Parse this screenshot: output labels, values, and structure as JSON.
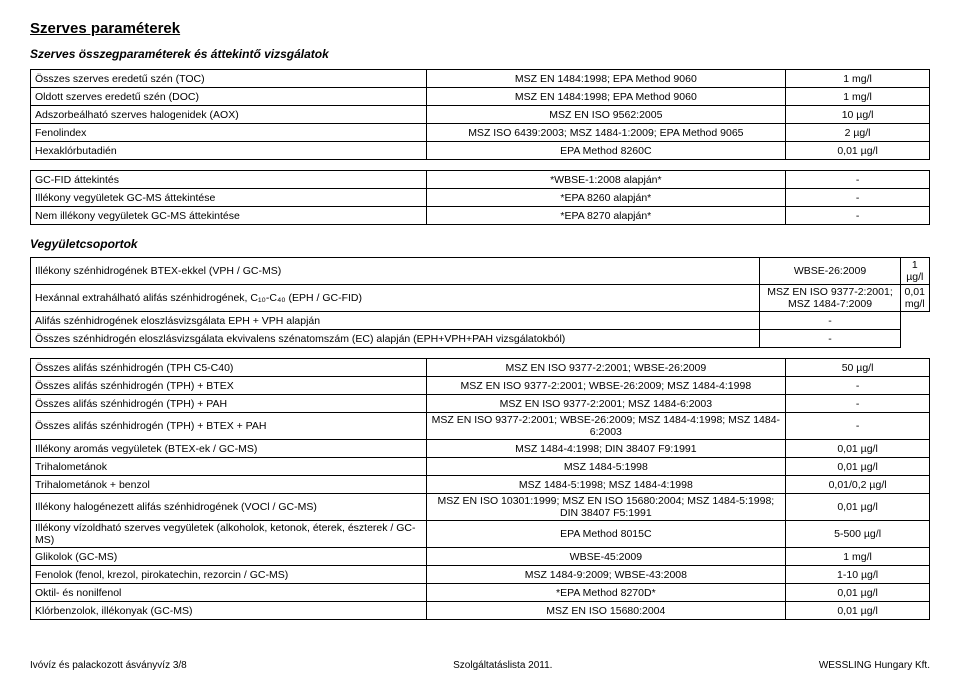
{
  "titles": {
    "main": "Szerves paraméterek",
    "sub": "Szerves összegparaméterek és áttekintő vizsgálatok",
    "section2": "Vegyületcsoportok"
  },
  "table1": [
    {
      "p": "Összes szerves eredetű szén (TOC)",
      "m": "MSZ EN 1484:1998; EPA Method 9060",
      "l": "1 mg/l"
    },
    {
      "p": "Oldott szerves eredetű szén (DOC)",
      "m": "MSZ EN 1484:1998; EPA Method 9060",
      "l": "1 mg/l"
    },
    {
      "p": "Adszorbeálható szerves halogenidek (AOX)",
      "m": "MSZ EN ISO 9562:2005",
      "l": "10 µg/l"
    },
    {
      "p": "Fenolindex",
      "m": "MSZ ISO 6439:2003; MSZ 1484-1:2009; EPA Method 9065",
      "l": "2 µg/l"
    },
    {
      "p": "Hexaklórbutadién",
      "m": "EPA Method 8260C",
      "l": "0,01 µg/l"
    }
  ],
  "table2": [
    {
      "p": "GC-FID áttekintés",
      "m": "*WBSE-1:2008 alapján*",
      "l": "-"
    },
    {
      "p": "Illékony vegyületek GC-MS áttekintése",
      "m": "*EPA 8260 alapján*",
      "l": "-"
    },
    {
      "p": "Nem illékony vegyületek GC-MS áttekintése",
      "m": "*EPA 8270 alapján*",
      "l": "-"
    }
  ],
  "table3a": [
    {
      "p": "Illékony szénhidrogének BTEX-ekkel (VPH / GC-MS)",
      "m": "WBSE-26:2009",
      "l": "1 µg/l"
    },
    {
      "p": "Hexánnal extrahálható alifás szénhidrogének, C₁₀-C₄₀ (EPH / GC-FID)",
      "m": "MSZ EN ISO 9377-2:2001; MSZ 1484-7:2009",
      "l": "0,01 mg/l"
    }
  ],
  "table3a_wide1": {
    "p": "Alifás szénhidrogének eloszlásvizsgálata EPH + VPH alapján",
    "l": "-"
  },
  "table3a_wide2": {
    "p": "Összes szénhidrogén eloszlásvizsgálata ekvivalens szénatomszám (EC) alapján (EPH+VPH+PAH vizsgálatokból)",
    "l": "-"
  },
  "table3b": [
    {
      "p": "Összes  alifás szénhidrogén (TPH C5-C40)",
      "m": "MSZ EN ISO 9377-2:2001; WBSE-26:2009",
      "l": "50 µg/l"
    },
    {
      "p": "Összes  alifás szénhidrogén (TPH) + BTEX",
      "m": "MSZ EN ISO 9377-2:2001; WBSE-26:2009; MSZ 1484-4:1998",
      "l": "-"
    },
    {
      "p": "Összes  alifás szénhidrogén (TPH) + PAH",
      "m": "MSZ EN ISO 9377-2:2001; MSZ 1484-6:2003",
      "l": "-"
    },
    {
      "p": "Összes  alifás szénhidrogén (TPH) + BTEX + PAH",
      "m": "MSZ EN ISO 9377-2:2001; WBSE-26:2009; MSZ 1484-4:1998; MSZ 1484-6:2003",
      "l": "-"
    },
    {
      "p": "Illékony aromás vegyületek (BTEX-ek / GC-MS)",
      "m": "MSZ 1484-4:1998; DIN 38407 F9:1991",
      "l": "0,01 µg/l"
    },
    {
      "p": "Trihalometánok",
      "m": "MSZ 1484-5:1998",
      "l": "0,01 µg/l"
    },
    {
      "p": "Trihalometánok + benzol",
      "m": "MSZ 1484-5:1998; MSZ 1484-4:1998",
      "l": "0,01/0,2 µg/l"
    },
    {
      "p": "Illékony halogénezett alifás szénhidrogének (VOCl / GC-MS)",
      "m": "MSZ EN ISO 10301:1999; MSZ EN ISO 15680:2004; MSZ 1484-5:1998; DIN 38407 F5:1991",
      "l": "0,01 µg/l"
    },
    {
      "p": "Illékony vízoldható szerves vegyületek (alkoholok, ketonok, éterek, észterek / GC-MS)",
      "m": "EPA Method 8015C",
      "l": "5-500 µg/l"
    },
    {
      "p": "Glikolok (GC-MS)",
      "m": "WBSE-45:2009",
      "l": "1 mg/l"
    },
    {
      "p": "Fenolok (fenol, krezol, pirokatechin, rezorcin / GC-MS)",
      "m": "MSZ 1484-9:2009; WBSE-43:2008",
      "l": "1-10 µg/l"
    },
    {
      "p": "Oktil- és nonilfenol",
      "m": "*EPA Method 8270D*",
      "l": "0,01 µg/l"
    },
    {
      "p": "Klórbenzolok, illékonyak (GC-MS)",
      "m": "MSZ EN ISO 15680:2004",
      "l": "0,01 µg/l"
    }
  ],
  "footer": {
    "left": "Ivóvíz és palackozott ásványvíz 3/8",
    "center": "Szolgáltatáslista 2011.",
    "right": "WESSLING Hungary Kft."
  }
}
